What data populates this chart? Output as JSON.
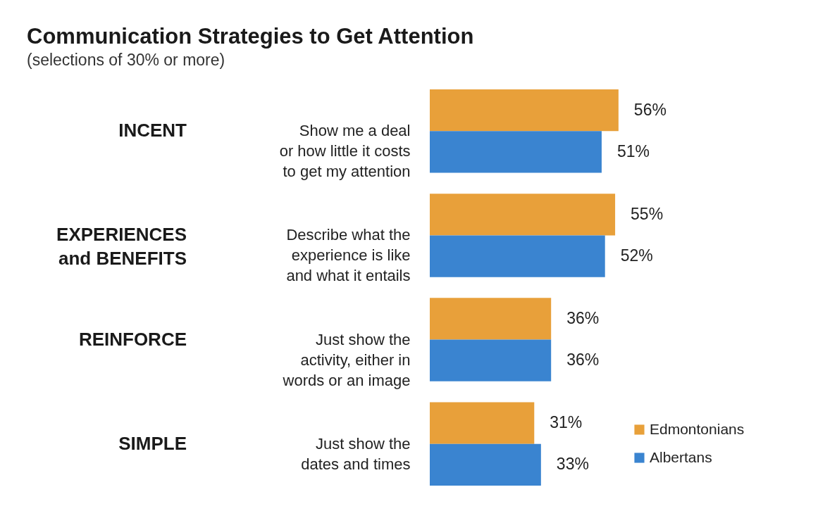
{
  "chart_data": {
    "type": "bar",
    "orientation": "horizontal",
    "title": "Communication Strategies to Get Attention",
    "subtitle": "(selections of 30% or more)",
    "categories": [
      "Show me a deal\nor how little it costs\nto get my attention",
      "Describe what the\nexperience is like\nand what it entails",
      "Just show the\nactivity, either in\nwords or an image",
      "Just show the\ndates and times"
    ],
    "annotations": [
      "INCENT",
      "EXPERIENCES\nand BENEFITS",
      "REINFORCE",
      "SIMPLE"
    ],
    "series": [
      {
        "name": "Edmontonians",
        "color": "#e8a03a",
        "values": [
          56,
          55,
          36,
          31
        ],
        "value_labels": [
          "56%",
          "55%",
          "36%",
          "31%"
        ]
      },
      {
        "name": "Albertans",
        "color": "#3a84d0",
        "values": [
          51,
          52,
          36,
          33
        ],
        "value_labels": [
          "51%",
          "52%",
          "36%",
          "33%"
        ]
      }
    ],
    "tick_labels": "y",
    "legend": "bottom right"
  }
}
